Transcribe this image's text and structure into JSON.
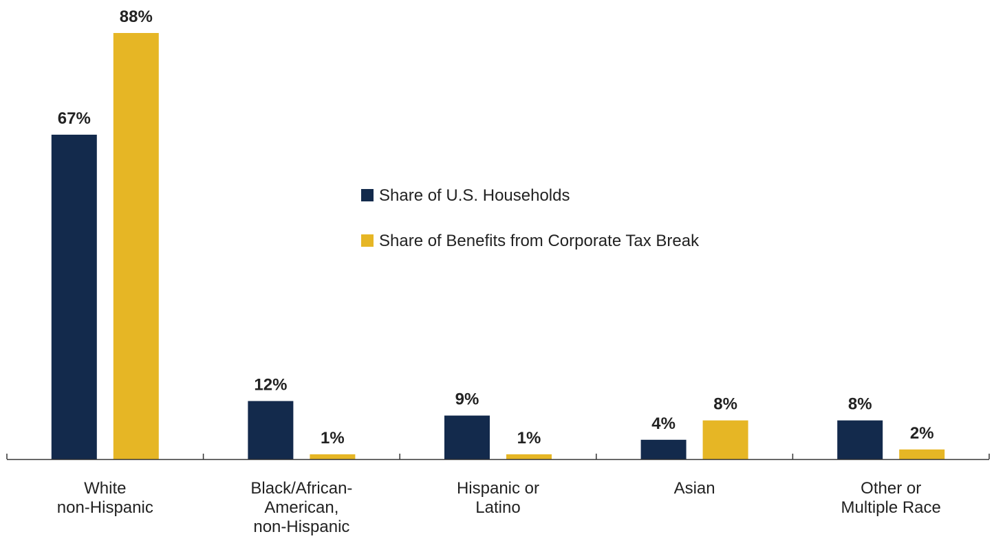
{
  "chart_data": {
    "type": "bar",
    "categories": [
      [
        "White",
        "non-Hispanic"
      ],
      [
        "Black/African-",
        "American,",
        "non-Hispanic"
      ],
      [
        "Hispanic or",
        "Latino"
      ],
      [
        "Asian"
      ],
      [
        "Other or",
        "Multiple Race"
      ]
    ],
    "series": [
      {
        "name": "Share of U.S. Households",
        "values": [
          67,
          12,
          9,
          4,
          8
        ],
        "labels": [
          "67%",
          "12%",
          "9%",
          "4%",
          "8%"
        ],
        "color": "#132a4c"
      },
      {
        "name": "Share of Benefits from Corporate Tax Break",
        "values": [
          88,
          1,
          1,
          8,
          2
        ],
        "labels": [
          "88%",
          "1%",
          "1%",
          "8%",
          "2%"
        ],
        "color": "#e6b625"
      }
    ],
    "ylim": [
      0,
      100
    ],
    "grid": false,
    "legend_position": "center"
  }
}
